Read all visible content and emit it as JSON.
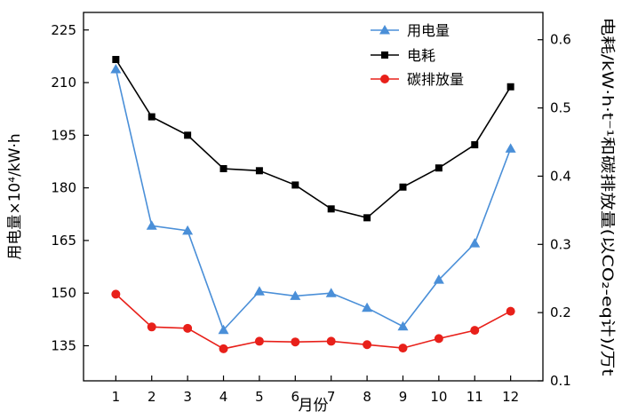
{
  "chart_data": {
    "type": "line",
    "xlabel": "月份",
    "ylabel_left": "用电量×10⁴/kW·h",
    "ylabel_right": "电耗/kW·h·t⁻¹和碳排放量(以CO₂-eq计)/万t",
    "x": [
      1,
      2,
      3,
      4,
      5,
      6,
      7,
      8,
      9,
      10,
      11,
      12
    ],
    "xlim": [
      0.1,
      12.9
    ],
    "ylim_left": [
      125,
      230
    ],
    "ylim_right": [
      0.1,
      0.64
    ],
    "yticks_left": [
      135,
      150,
      165,
      180,
      195,
      210,
      225
    ],
    "yticks_right": [
      0.1,
      0.2,
      0.3,
      0.4,
      0.5,
      0.6
    ],
    "yticklabels_right": [
      "0.1",
      "0.2",
      "0.3",
      "0.4",
      "0.5",
      "0.6"
    ],
    "legend_position": "top-right",
    "grid": false,
    "series": [
      {
        "name": "用电量",
        "axis": "left",
        "color": "#4a8fd8",
        "marker": "triangle",
        "values": [
          213.8,
          169.2,
          167.8,
          139.5,
          150.5,
          149.2,
          150.0,
          145.8,
          140.5,
          153.8,
          164.2,
          191.2
        ]
      },
      {
        "name": "电耗",
        "axis": "right",
        "color": "#000000",
        "marker": "square",
        "values": [
          0.571,
          0.487,
          0.46,
          0.411,
          0.408,
          0.387,
          0.352,
          0.339,
          0.384,
          0.412,
          0.446,
          0.531
        ]
      },
      {
        "name": "碳排放量",
        "axis": "right",
        "color": "#e8201a",
        "marker": "circle",
        "values": [
          0.227,
          0.179,
          0.177,
          0.147,
          0.158,
          0.157,
          0.158,
          0.153,
          0.148,
          0.162,
          0.174,
          0.202
        ]
      }
    ]
  }
}
